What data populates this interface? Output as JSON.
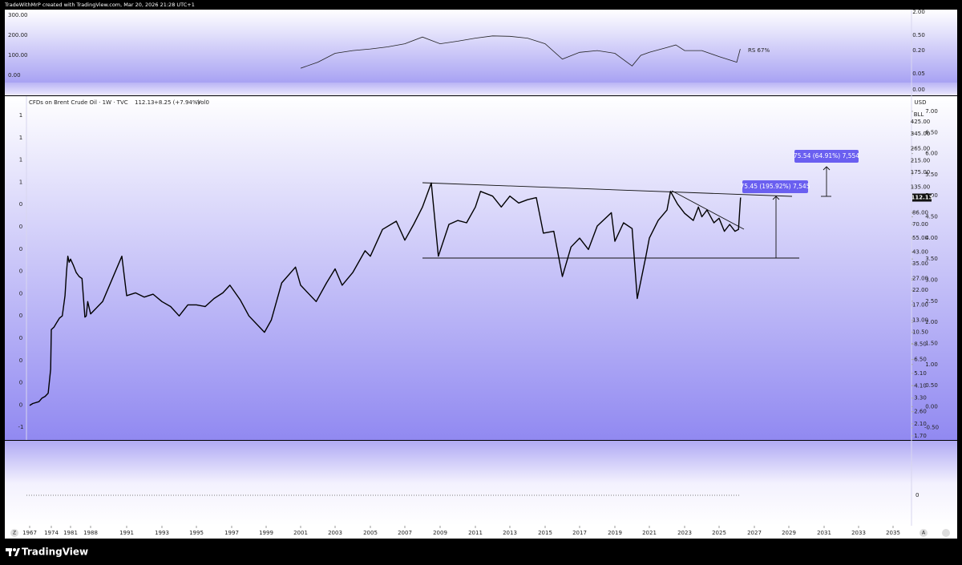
{
  "header": {
    "caption": "TradeWithMrP created with TradingView.com, Mar 20, 2026 21:28 UTC+1"
  },
  "indicator": {
    "label": "RS 67%",
    "left_ticks": [
      {
        "value": 300,
        "label": "300.00"
      },
      {
        "value": 200,
        "label": "200.00"
      },
      {
        "value": 100,
        "label": "100.00"
      },
      {
        "value": 0,
        "label": "0.00"
      }
    ],
    "right_ticks": [
      {
        "value": 2,
        "label": "2.00"
      },
      {
        "value": 0.5,
        "label": "0.50"
      },
      {
        "value": 0.2,
        "label": "0.20"
      },
      {
        "value": 0.05,
        "label": "0.05"
      },
      {
        "value": 0,
        "label": "0.00"
      }
    ],
    "x": [
      2001,
      2002,
      2003,
      2004,
      2005,
      2006,
      2007,
      2008,
      2009,
      2010,
      2011,
      2012,
      2013,
      2014,
      2015,
      2016,
      2017,
      2018,
      2019,
      2020,
      2020.5,
      2021,
      2022,
      2022.5,
      2023,
      2024,
      2025,
      2026,
      2026.2
    ],
    "values": [
      0.07,
      0.1,
      0.17,
      0.2,
      0.22,
      0.25,
      0.3,
      0.45,
      0.3,
      0.35,
      0.42,
      0.48,
      0.47,
      0.42,
      0.3,
      0.12,
      0.18,
      0.2,
      0.17,
      0.08,
      0.15,
      0.18,
      0.24,
      0.28,
      0.2,
      0.2,
      0.14,
      0.1,
      0.22
    ]
  },
  "chart_data": {
    "type": "line",
    "legend": {
      "symbol": "CFDs on Brent Crude Oil · 1W · TVC",
      "last": "112.13",
      "change": "+8.25 (+7.94%)",
      "volume": "Vol0"
    },
    "currency": "USD",
    "unit": "BLL",
    "color": "#000000",
    "x": [
      1967,
      1968,
      1970,
      1971,
      1972,
      1973,
      1973.8,
      1974,
      1975,
      1976,
      1977,
      1978,
      1979,
      1979.5,
      1980,
      1980.5,
      1981,
      1982,
      1983,
      1984,
      1985,
      1986,
      1986.5,
      1987,
      1988,
      1989,
      1990.6,
      1991,
      1991.5,
      1992,
      1992.5,
      1993,
      1993.5,
      1994,
      1994.5,
      1995,
      1995.5,
      1996,
      1996.5,
      1996.9,
      1997.5,
      1998,
      1998.9,
      1999.3,
      1999.9,
      2000.7,
      2001,
      2001.9,
      2002.5,
      2003,
      2003.4,
      2004,
      2004.7,
      2005,
      2005.7,
      2006.5,
      2007,
      2007.5,
      2008,
      2008.5,
      2008.9,
      2009.5,
      2010,
      2010.5,
      2011,
      2011.3,
      2012,
      2012.5,
      2013,
      2013.5,
      2014,
      2014.5,
      2014.9,
      2015.5,
      2016,
      2016.5,
      2017,
      2017.5,
      2018,
      2018.8,
      2019,
      2019.5,
      2020,
      2020.3,
      2020.8,
      2021,
      2021.5,
      2022,
      2022.2,
      2022.6,
      2023,
      2023.5,
      2023.8,
      2024,
      2024.3,
      2024.7,
      2025,
      2025.3,
      2025.6,
      2025.9,
      2026.1,
      2026.2,
      2026.22
    ],
    "values": [
      2.9,
      3.0,
      3.1,
      3.3,
      3.4,
      3.6,
      5.5,
      11,
      11.5,
      12.5,
      13.5,
      14,
      20,
      30,
      40,
      36,
      38,
      34,
      30,
      28,
      27,
      13.7,
      14,
      18,
      14.5,
      18,
      40,
      20,
      21,
      19.5,
      20.5,
      18,
      16.5,
      14,
      17,
      17,
      16.5,
      19,
      21,
      24,
      18.5,
      14,
      10.5,
      13,
      25,
      33,
      24,
      18,
      25,
      32,
      24,
      30,
      44,
      40,
      64,
      74,
      53,
      70,
      95,
      145,
      40,
      70,
      75,
      72,
      95,
      125,
      115,
      95,
      115,
      102,
      108,
      112,
      60,
      62,
      28,
      47,
      55,
      45,
      68,
      86,
      52,
      72,
      65,
      19,
      40,
      55,
      75,
      90,
      125,
      100,
      85,
      75,
      95,
      80,
      90,
      72,
      78,
      62,
      70,
      62,
      64,
      104,
      112.13
    ],
    "log_scale": true,
    "ylim": [
      1.58,
      667
    ],
    "yticks": [
      {
        "value": 425,
        "label": "425.00"
      },
      {
        "value": 345,
        "label": "345.00"
      },
      {
        "value": 265,
        "label": "265.00"
      },
      {
        "value": 215,
        "label": "215.00"
      },
      {
        "value": 175,
        "label": "175.00"
      },
      {
        "value": 135,
        "label": "135.00"
      },
      {
        "value": 86,
        "label": "86.00"
      },
      {
        "value": 70,
        "label": "70.00"
      },
      {
        "value": 55,
        "label": "55.00"
      },
      {
        "value": 43,
        "label": "43.00"
      },
      {
        "value": 35,
        "label": "35.00"
      },
      {
        "value": 27,
        "label": "27.00"
      },
      {
        "value": 22,
        "label": "22.00"
      },
      {
        "value": 17,
        "label": "17.00"
      },
      {
        "value": 13,
        "label": "13.00"
      },
      {
        "value": 10.5,
        "label": "10.50"
      },
      {
        "value": 8.5,
        "label": "8.50"
      },
      {
        "value": 6.5,
        "label": "6.50"
      },
      {
        "value": 5.1,
        "label": "5.10"
      },
      {
        "value": 4.1,
        "label": "4.10"
      },
      {
        "value": 3.3,
        "label": "3.30"
      },
      {
        "value": 2.6,
        "label": "2.60"
      },
      {
        "value": 2.1,
        "label": "2.10"
      },
      {
        "value": 1.7,
        "label": "1.70"
      }
    ],
    "last_price": 112.13,
    "y2lim": [
      -0.79,
      7.36
    ],
    "y2ticks": [
      {
        "value": 7,
        "label": "7.00"
      },
      {
        "value": 6.5,
        "label": "6.50"
      },
      {
        "value": 6,
        "label": "6.00"
      },
      {
        "value": 5.5,
        "label": "5.50"
      },
      {
        "value": 5,
        "label": "5.00"
      },
      {
        "value": 4.5,
        "label": "4.50"
      },
      {
        "value": 4,
        "label": "4.00"
      },
      {
        "value": 3.5,
        "label": "3.50"
      },
      {
        "value": 3,
        "label": "3.00"
      },
      {
        "value": 2.5,
        "label": "2.50"
      },
      {
        "value": 2,
        "label": "2.00"
      },
      {
        "value": 1.5,
        "label": "1.50"
      },
      {
        "value": 1,
        "label": "1.00"
      },
      {
        "value": 0.5,
        "label": "0.50"
      },
      {
        "value": 0,
        "label": "0.00"
      },
      {
        "value": -0.5,
        "label": "-0.50"
      }
    ],
    "left_labels": [
      "1",
      "1",
      "1",
      "1",
      "0",
      "0",
      "0",
      "0",
      "0",
      "0",
      "0",
      "0",
      "0",
      "0",
      "-1"
    ],
    "xticks": [
      1967,
      1974,
      1981,
      1988,
      1991,
      1993,
      1995,
      1997,
      1999,
      2001,
      2003,
      2005,
      2007,
      2009,
      2011,
      2013,
      2015,
      2017,
      2019,
      2021,
      2023,
      2025,
      2027,
      2029,
      2031,
      2033,
      2035
    ],
    "annotations": [
      "75.54 (64.91%) 7,554",
      "75.45 (195.92%) 7,545"
    ]
  },
  "volume_pane": {
    "tick": "0"
  },
  "controls": {
    "left": "Z",
    "right": "A"
  },
  "footer": {
    "brand": "TradingView"
  }
}
